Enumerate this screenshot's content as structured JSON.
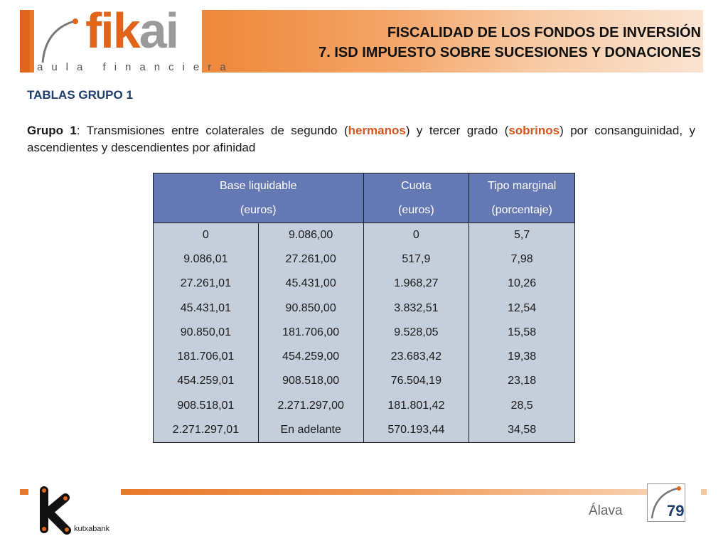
{
  "header": {
    "logo_text_fik": "fik",
    "logo_text_ai": "ai",
    "logo_subtitle": "aula financiera",
    "title_line1": "FISCALIDAD DE LOS FONDOS DE INVERSIÓN",
    "title_line2": "7.  ISD IMPUESTO SOBRE SUCESIONES Y DONACIONES"
  },
  "section": {
    "heading": "TABLAS GRUPO 1",
    "intro_label": "Grupo 1",
    "intro_part1": ": Transmisiones entre colaterales de segundo (",
    "intro_highlight1": "hermanos",
    "intro_part2": ") y tercer grado (",
    "intro_highlight2": "sobrinos",
    "intro_part3": ") por consanguinidad, y ascendientes y descendientes por afinidad"
  },
  "table": {
    "headers": {
      "base_line1": "Base liquidable",
      "base_line2": "(euros)",
      "cuota_line1": "Cuota",
      "cuota_line2": "(euros)",
      "tipo_line1": "Tipo marginal",
      "tipo_line2": "(porcentaje)"
    },
    "rows": [
      [
        "0",
        "9.086,00",
        "0",
        "5,7"
      ],
      [
        "9.086,01",
        "27.261,00",
        "517,9",
        "7,98"
      ],
      [
        "27.261,01",
        "45.431,00",
        "1.968,27",
        "10,26"
      ],
      [
        "45.431,01",
        "90.850,00",
        "3.832,51",
        "12,54"
      ],
      [
        "90.850,01",
        "181.706,00",
        "9.528,05",
        "15,58"
      ],
      [
        "181.706,01",
        "454.259,00",
        "23.683,42",
        "19,38"
      ],
      [
        "454.259,01",
        "908.518,00",
        "76.504,19",
        "23,18"
      ],
      [
        "908.518,01",
        "2.271.297,00",
        "181.801,42",
        "28,5"
      ],
      [
        "2.271.297,01",
        "En adelante",
        "570.193,44",
        "34,58"
      ]
    ]
  },
  "footer": {
    "brand": "kutxabank",
    "region": "Álava",
    "page_number": "79"
  },
  "colors": {
    "accent_orange": "#e0641a",
    "table_header": "#6478b4",
    "table_body": "#c5cedb",
    "heading_blue": "#1f3e6e"
  }
}
